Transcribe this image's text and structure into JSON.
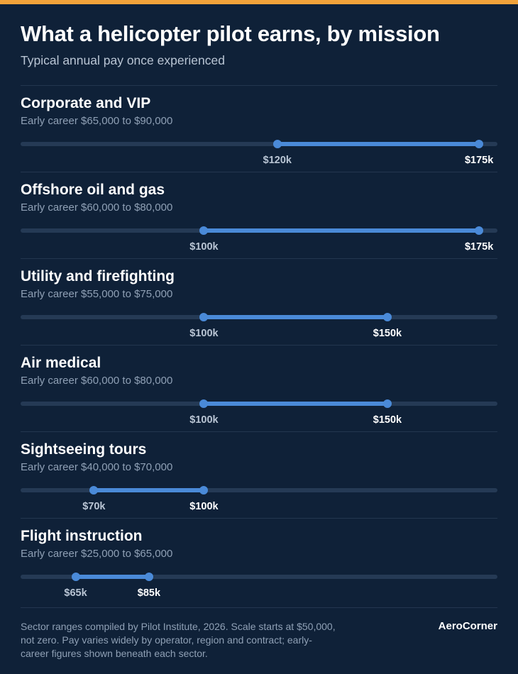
{
  "header": {
    "title": "What a helicopter pilot earns, by mission",
    "subtitle": "Typical annual pay once experienced"
  },
  "chart_data": {
    "type": "range",
    "title": "What a helicopter pilot earns, by mission",
    "subtitle": "Typical annual pay once experienced",
    "unit": "USD per year",
    "xlim": [
      50000,
      180000
    ],
    "grid": false,
    "series": [
      {
        "name": "Corporate and VIP",
        "early_career": "Early career $65,000 to $90,000",
        "low": 120000,
        "high": 175000,
        "low_label": "$120k",
        "high_label": "$175k"
      },
      {
        "name": "Offshore oil and gas",
        "early_career": "Early career $60,000 to $80,000",
        "low": 100000,
        "high": 175000,
        "low_label": "$100k",
        "high_label": "$175k"
      },
      {
        "name": "Utility and firefighting",
        "early_career": "Early career $55,000 to $75,000",
        "low": 100000,
        "high": 150000,
        "low_label": "$100k",
        "high_label": "$150k"
      },
      {
        "name": "Air medical",
        "early_career": "Early career $60,000 to $80,000",
        "low": 100000,
        "high": 150000,
        "low_label": "$100k",
        "high_label": "$150k"
      },
      {
        "name": "Sightseeing tours",
        "early_career": "Early career $40,000 to $70,000",
        "low": 70000,
        "high": 100000,
        "low_label": "$70k",
        "high_label": "$100k"
      },
      {
        "name": "Flight instruction",
        "early_career": "Early career $25,000 to $65,000",
        "low": 65000,
        "high": 85000,
        "low_label": "$65k",
        "high_label": "$85k"
      }
    ]
  },
  "footer": {
    "note": "Sector ranges compiled by Pilot Institute, 2026. Scale starts at $50,000, not zero. Pay varies widely by operator, region and contract; early-career figures shown beneath each sector.",
    "brand": "AeroCorner"
  },
  "colors": {
    "background": "#0f2138",
    "accent_bar": "#f2a33a",
    "range": "#4a8ad8",
    "track": "#253a55"
  }
}
